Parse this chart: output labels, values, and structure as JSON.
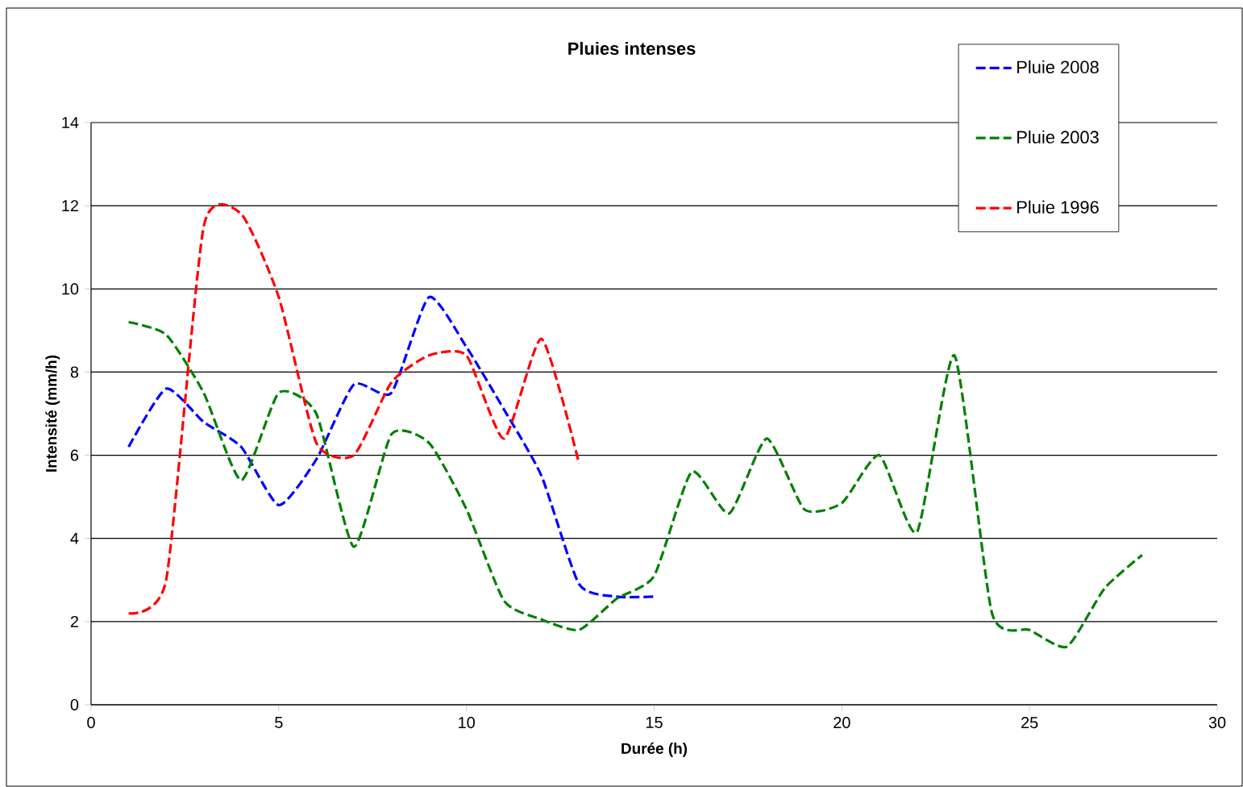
{
  "chart_data": {
    "type": "line",
    "title": "Pluies intenses",
    "xlabel": "Durée (h)",
    "ylabel": "Intensité  (mm/h)",
    "xlim": [
      0,
      30
    ],
    "ylim": [
      0,
      14
    ],
    "xticks": [
      0,
      5,
      10,
      15,
      20,
      25,
      30
    ],
    "yticks": [
      0,
      2,
      4,
      6,
      8,
      10,
      12,
      14
    ],
    "grid": "y",
    "legend": "top right",
    "line_style": "dashed",
    "series": [
      {
        "name": "Pluie 2008",
        "color": "#0000ff",
        "x": [
          1,
          2,
          3,
          4,
          5,
          6,
          7,
          8,
          9,
          10,
          11,
          12,
          13,
          14,
          15
        ],
        "values": [
          6.2,
          7.6,
          6.8,
          6.2,
          4.8,
          5.9,
          7.7,
          7.5,
          9.8,
          8.6,
          7.1,
          5.5,
          2.9,
          2.6,
          2.6
        ]
      },
      {
        "name": "Pluie 2003",
        "color": "#008000",
        "x": [
          1,
          2,
          3,
          4,
          5,
          6,
          7,
          8,
          9,
          10,
          11,
          12,
          13,
          14,
          15,
          16,
          17,
          18,
          19,
          20,
          21,
          22,
          23,
          24,
          25,
          26,
          27,
          28
        ],
        "values": [
          9.2,
          8.9,
          7.5,
          5.4,
          7.5,
          7.0,
          3.8,
          6.5,
          6.3,
          4.7,
          2.5,
          2.05,
          1.8,
          2.55,
          3.1,
          5.6,
          4.6,
          6.4,
          4.7,
          4.85,
          6.0,
          4.15,
          8.4,
          2.2,
          1.8,
          1.4,
          2.8,
          3.6
        ]
      },
      {
        "name": "Pluie 1996",
        "color": "#ff0000",
        "x": [
          1,
          2,
          3,
          4,
          5,
          6,
          7,
          8,
          9,
          10,
          11,
          12,
          13
        ],
        "values": [
          2.2,
          3.0,
          11.5,
          11.8,
          9.8,
          6.3,
          6.0,
          7.75,
          8.4,
          8.4,
          6.4,
          8.8,
          5.8
        ]
      }
    ]
  }
}
